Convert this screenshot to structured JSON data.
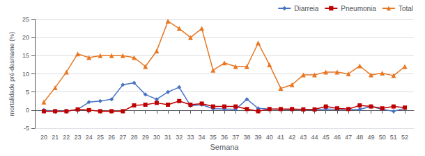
{
  "chart_data": {
    "type": "line",
    "xlabel": "Semana",
    "ylabel": "mortalidade pré-desmame (%)",
    "x": [
      20,
      21,
      22,
      23,
      24,
      25,
      26,
      27,
      28,
      29,
      30,
      31,
      32,
      33,
      34,
      35,
      36,
      37,
      38,
      39,
      40,
      41,
      42,
      43,
      44,
      45,
      46,
      47,
      48,
      49,
      50,
      51,
      52
    ],
    "series": [
      {
        "name": "Diarreia",
        "color": "#4472C4",
        "marker": "diamond",
        "values": [
          0,
          -0.3,
          -0.3,
          0.2,
          2.2,
          2.5,
          3.0,
          7.0,
          7.5,
          4.3,
          3.0,
          5.0,
          6.3,
          1.2,
          1.5,
          0.4,
          0.3,
          0.2,
          3.0,
          0.5,
          0.3,
          0.2,
          0.1,
          0.2,
          0.1,
          0.3,
          0.2,
          0.2,
          0.2,
          1.0,
          0.2,
          -0.3,
          0.5
        ]
      },
      {
        "name": "Pneumonia",
        "color": "#BE0000",
        "marker": "square",
        "values": [
          -0.3,
          -0.3,
          -0.3,
          0.2,
          0.0,
          -0.3,
          -0.3,
          -0.3,
          1.3,
          1.5,
          2.0,
          1.5,
          2.5,
          1.5,
          1.8,
          1.0,
          1.0,
          1.0,
          0.3,
          -0.3,
          0.3,
          0.3,
          0.3,
          0.2,
          0.2,
          1.0,
          0.5,
          0.3,
          1.3,
          1.0,
          0.5,
          1.0,
          0.7
        ]
      },
      {
        "name": "Total",
        "color": "#E87722",
        "marker": "triangle",
        "values": [
          2.2,
          6.2,
          10.5,
          15.5,
          14.5,
          15.0,
          15.0,
          15.0,
          14.5,
          12.0,
          16.3,
          24.5,
          22.5,
          20.0,
          22.5,
          11.0,
          13.0,
          12.0,
          12.0,
          18.5,
          12.5,
          6.0,
          7.0,
          9.7,
          9.7,
          10.5,
          10.5,
          10.0,
          12.2,
          9.7,
          10.2,
          9.5,
          12.0
        ]
      }
    ],
    "xlim": [
      19.2,
      52.8
    ],
    "xticks": [
      20,
      21,
      22,
      23,
      24,
      25,
      26,
      27,
      28,
      29,
      30,
      31,
      32,
      33,
      34,
      35,
      36,
      37,
      38,
      39,
      40,
      41,
      42,
      43,
      44,
      45,
      46,
      47,
      48,
      49,
      50,
      51,
      52
    ],
    "ylim": [
      -5,
      25
    ],
    "yticks": [
      -5,
      0,
      5,
      10,
      15,
      20,
      25
    ],
    "grid": true,
    "legend": "upper right"
  }
}
